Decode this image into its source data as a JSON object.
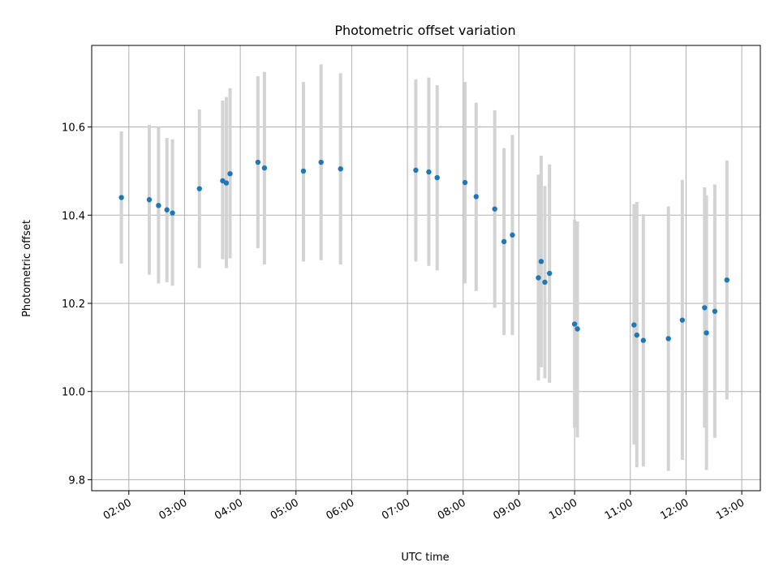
{
  "chart_data": {
    "type": "scatter",
    "title": "Photometric offset variation",
    "xlabel": "UTC time",
    "ylabel": "Photometric offset",
    "xlim": [
      "01:20",
      "13:20"
    ],
    "ylim": [
      9.775,
      10.785
    ],
    "x_ticks": [
      "02:00",
      "03:00",
      "04:00",
      "05:00",
      "06:00",
      "07:00",
      "08:00",
      "09:00",
      "10:00",
      "11:00",
      "12:00",
      "13:00"
    ],
    "y_ticks": [
      9.8,
      10.0,
      10.2,
      10.4,
      10.6
    ],
    "y_tick_labels": [
      "9.8",
      "10.0",
      "10.2",
      "10.4",
      "10.6"
    ],
    "grid": true,
    "point_color": "#1f77b4",
    "errorbar_color": "#d3d3d3",
    "points": [
      {
        "x": "01:52",
        "y": 10.44,
        "lo": 10.29,
        "hi": 10.59
      },
      {
        "x": "02:22",
        "y": 10.435,
        "lo": 10.265,
        "hi": 10.605
      },
      {
        "x": "02:32",
        "y": 10.422,
        "lo": 10.245,
        "hi": 10.6
      },
      {
        "x": "02:41",
        "y": 10.412,
        "lo": 10.248,
        "hi": 10.575
      },
      {
        "x": "02:47",
        "y": 10.405,
        "lo": 10.24,
        "hi": 10.572
      },
      {
        "x": "03:16",
        "y": 10.46,
        "lo": 10.28,
        "hi": 10.64
      },
      {
        "x": "03:41",
        "y": 10.478,
        "lo": 10.3,
        "hi": 10.66
      },
      {
        "x": "03:45",
        "y": 10.473,
        "lo": 10.28,
        "hi": 10.668
      },
      {
        "x": "03:49",
        "y": 10.494,
        "lo": 10.302,
        "hi": 10.688
      },
      {
        "x": "04:19",
        "y": 10.52,
        "lo": 10.325,
        "hi": 10.715
      },
      {
        "x": "04:26",
        "y": 10.507,
        "lo": 10.288,
        "hi": 10.725
      },
      {
        "x": "05:08",
        "y": 10.5,
        "lo": 10.295,
        "hi": 10.702
      },
      {
        "x": "05:27",
        "y": 10.52,
        "lo": 10.298,
        "hi": 10.742
      },
      {
        "x": "05:48",
        "y": 10.505,
        "lo": 10.288,
        "hi": 10.722
      },
      {
        "x": "07:09",
        "y": 10.502,
        "lo": 10.295,
        "hi": 10.708
      },
      {
        "x": "07:23",
        "y": 10.498,
        "lo": 10.285,
        "hi": 10.712
      },
      {
        "x": "07:32",
        "y": 10.485,
        "lo": 10.275,
        "hi": 10.695
      },
      {
        "x": "08:02",
        "y": 10.474,
        "lo": 10.245,
        "hi": 10.702
      },
      {
        "x": "08:14",
        "y": 10.442,
        "lo": 10.228,
        "hi": 10.655
      },
      {
        "x": "08:34",
        "y": 10.414,
        "lo": 10.19,
        "hi": 10.638
      },
      {
        "x": "08:44",
        "y": 10.34,
        "lo": 10.128,
        "hi": 10.552
      },
      {
        "x": "08:53",
        "y": 10.355,
        "lo": 10.128,
        "hi": 10.582
      },
      {
        "x": "09:21",
        "y": 10.258,
        "lo": 10.025,
        "hi": 10.492
      },
      {
        "x": "09:24",
        "y": 10.295,
        "lo": 10.055,
        "hi": 10.535
      },
      {
        "x": "09:28",
        "y": 10.248,
        "lo": 10.03,
        "hi": 10.466
      },
      {
        "x": "09:33",
        "y": 10.268,
        "lo": 10.02,
        "hi": 10.515
      },
      {
        "x": "10:00",
        "y": 10.153,
        "lo": 9.918,
        "hi": 10.39
      },
      {
        "x": "10:03",
        "y": 10.142,
        "lo": 9.896,
        "hi": 10.386
      },
      {
        "x": "11:04",
        "y": 10.151,
        "lo": 9.88,
        "hi": 10.425
      },
      {
        "x": "11:07",
        "y": 10.128,
        "lo": 9.828,
        "hi": 10.43
      },
      {
        "x": "11:14",
        "y": 10.116,
        "lo": 9.83,
        "hi": 10.402
      },
      {
        "x": "11:41",
        "y": 10.12,
        "lo": 9.82,
        "hi": 10.42
      },
      {
        "x": "11:56",
        "y": 10.162,
        "lo": 9.845,
        "hi": 10.48
      },
      {
        "x": "12:20",
        "y": 10.19,
        "lo": 9.918,
        "hi": 10.463
      },
      {
        "x": "12:22",
        "y": 10.133,
        "lo": 9.822,
        "hi": 10.445
      },
      {
        "x": "12:31",
        "y": 10.182,
        "lo": 9.895,
        "hi": 10.47
      },
      {
        "x": "12:44",
        "y": 10.253,
        "lo": 9.982,
        "hi": 10.524
      }
    ]
  }
}
